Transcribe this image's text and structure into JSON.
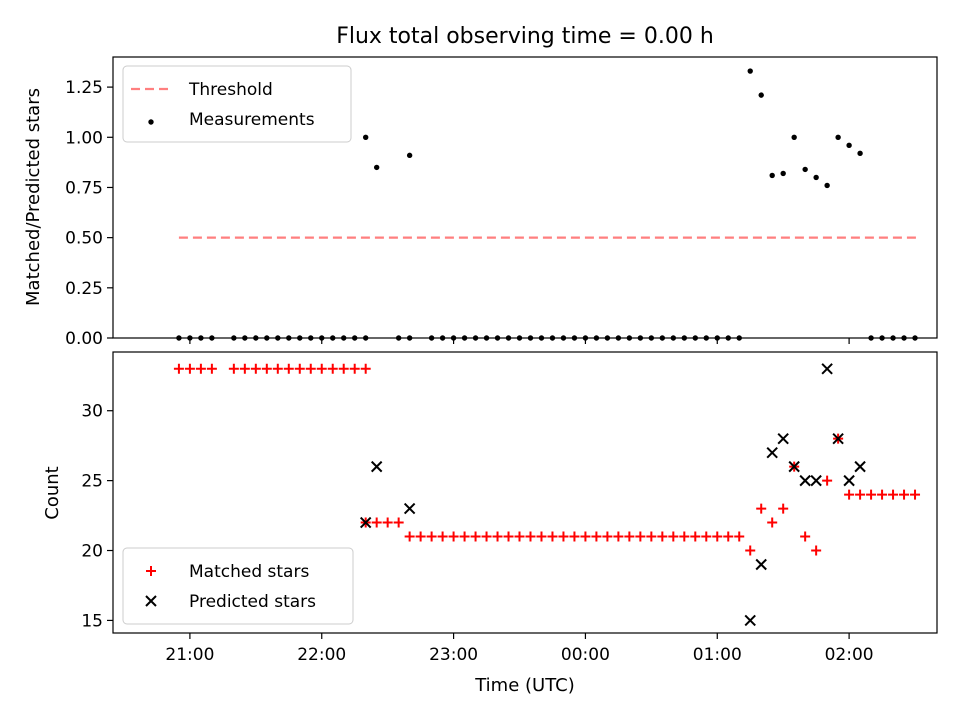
{
  "chart_data": [
    {
      "type": "scatter",
      "title": "Flux total observing time = 0.00 h",
      "xlabel": "",
      "ylabel": "Matched/Predicted stars",
      "ylim": [
        0,
        1.4
      ],
      "yticks": [
        "0.00",
        "0.25",
        "0.50",
        "0.75",
        "1.00",
        "1.25"
      ],
      "grid": false,
      "legend_position": "top-left",
      "series": [
        {
          "name": "Threshold",
          "kind": "dashed-line",
          "color": "#ff7f7f",
          "x": [
            "20:55",
            "02:32"
          ],
          "y": [
            0.5,
            0.5
          ]
        },
        {
          "name": "Measurements",
          "kind": "dot",
          "color": "#000000",
          "x": [
            "20:55",
            "21:00",
            "21:05",
            "21:10",
            "21:20",
            "21:25",
            "21:30",
            "21:35",
            "21:40",
            "21:45",
            "21:50",
            "21:55",
            "22:00",
            "22:05",
            "22:10",
            "22:15",
            "22:20",
            "22:35",
            "22:40",
            "22:50",
            "22:55",
            "23:00",
            "23:05",
            "23:10",
            "23:15",
            "23:20",
            "23:25",
            "23:30",
            "23:35",
            "23:40",
            "23:45",
            "23:50",
            "23:55",
            "00:00",
            "00:05",
            "00:10",
            "00:15",
            "00:20",
            "00:25",
            "00:30",
            "00:35",
            "00:40",
            "00:45",
            "00:50",
            "00:55",
            "01:00",
            "01:05",
            "01:10",
            "01:15",
            "01:20",
            "01:25",
            "01:30",
            "01:35",
            "01:40",
            "01:45",
            "01:50",
            "01:55",
            "02:00",
            "02:05",
            "02:10",
            "02:15",
            "02:20",
            "02:25",
            "02:30",
            "22:20",
            "22:25",
            "22:40"
          ],
          "y": [
            0,
            0,
            0,
            0,
            0,
            0,
            0,
            0,
            0,
            0,
            0,
            0,
            0,
            0,
            0,
            0,
            0,
            0,
            0,
            0,
            0,
            0,
            0,
            0,
            0,
            0,
            0,
            0,
            0,
            0,
            0,
            0,
            0,
            0,
            0,
            0,
            0,
            0,
            0,
            0,
            0,
            0,
            0,
            0,
            0,
            0,
            0,
            0,
            1.33,
            1.21,
            0.81,
            0.82,
            1.0,
            0.84,
            0.8,
            0.76,
            1.0,
            0.96,
            0.92,
            0,
            0,
            0,
            0,
            0,
            1.0,
            0.85,
            0.91
          ]
        }
      ]
    },
    {
      "type": "scatter",
      "title": "",
      "xlabel": "Time (UTC)",
      "ylabel": "Count",
      "ylim": [
        14.1,
        34.2
      ],
      "yticks": [
        "15",
        "20",
        "25",
        "30"
      ],
      "xticks": [
        "21:00",
        "22:00",
        "23:00",
        "00:00",
        "01:00",
        "02:00"
      ],
      "grid": false,
      "legend_position": "bottom-left",
      "series": [
        {
          "name": "Matched stars",
          "kind": "plus",
          "color": "#ff0000",
          "x": [
            "20:55",
            "21:00",
            "21:05",
            "21:10",
            "21:20",
            "21:25",
            "21:30",
            "21:35",
            "21:40",
            "21:45",
            "21:50",
            "21:55",
            "22:00",
            "22:05",
            "22:10",
            "22:15",
            "22:20",
            "22:20",
            "22:25",
            "22:30",
            "22:35",
            "22:40",
            "22:45",
            "22:50",
            "22:55",
            "23:00",
            "23:05",
            "23:10",
            "23:15",
            "23:20",
            "23:25",
            "23:30",
            "23:35",
            "23:40",
            "23:45",
            "23:50",
            "23:55",
            "00:00",
            "00:05",
            "00:10",
            "00:15",
            "00:20",
            "00:25",
            "00:30",
            "00:35",
            "00:40",
            "00:45",
            "00:50",
            "00:55",
            "01:00",
            "01:05",
            "01:10",
            "01:15",
            "01:20",
            "01:25",
            "01:30",
            "01:35",
            "01:40",
            "01:45",
            "01:50",
            "01:55",
            "02:00",
            "02:05",
            "02:10",
            "02:15",
            "02:20",
            "02:25",
            "02:30"
          ],
          "y": [
            33,
            33,
            33,
            33,
            33,
            33,
            33,
            33,
            33,
            33,
            33,
            33,
            33,
            33,
            33,
            33,
            33,
            22,
            22,
            22,
            22,
            21,
            21,
            21,
            21,
            21,
            21,
            21,
            21,
            21,
            21,
            21,
            21,
            21,
            21,
            21,
            21,
            21,
            21,
            21,
            21,
            21,
            21,
            21,
            21,
            21,
            21,
            21,
            21,
            21,
            21,
            21,
            20,
            23,
            22,
            23,
            26,
            21,
            20,
            25,
            28,
            24,
            24,
            24,
            24,
            24,
            24,
            24
          ]
        },
        {
          "name": "Predicted stars",
          "kind": "x",
          "color": "#000000",
          "x": [
            "22:20",
            "22:25",
            "22:40",
            "01:15",
            "01:20",
            "01:25",
            "01:30",
            "01:35",
            "01:40",
            "01:45",
            "01:50",
            "01:55",
            "02:00",
            "02:05"
          ],
          "y": [
            22,
            26,
            23,
            15,
            19,
            27,
            28,
            26,
            25,
            25,
            33,
            28,
            25,
            26
          ]
        }
      ]
    }
  ]
}
